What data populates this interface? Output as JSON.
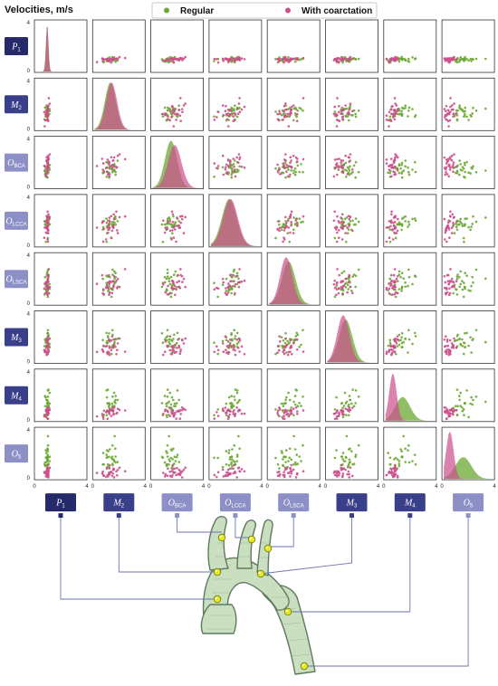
{
  "chart_data": {
    "type": "scatter-matrix",
    "title": "Velocities, m/s",
    "legend": {
      "placement": "top-center",
      "entries": [
        {
          "name": "Regular",
          "color": "#6aa832"
        },
        {
          "name": "With coarctation",
          "color": "#cc4f8c"
        }
      ]
    },
    "axis": {
      "min": 0,
      "max": 4,
      "tick_labels": [
        "0",
        "4"
      ]
    },
    "variables": [
      {
        "base": "P",
        "sub": "1",
        "color": "#252a6b",
        "mean_regular": 0.9,
        "mean_coarct": 0.9,
        "sd_regular": 0.1,
        "sd_coarct": 0.1
      },
      {
        "base": "M",
        "sub": "2",
        "color": "#3a3f8a",
        "mean_regular": 1.3,
        "mean_coarct": 1.4,
        "sd_regular": 0.45,
        "sd_coarct": 0.45
      },
      {
        "base": "O",
        "sub": "BCA",
        "color": "#8d90c6",
        "mean_regular": 1.5,
        "mean_coarct": 1.8,
        "sd_regular": 0.5,
        "sd_coarct": 0.55
      },
      {
        "base": "O",
        "sub": "LCCA",
        "color": "#8d90c6",
        "mean_regular": 1.5,
        "mean_coarct": 1.6,
        "sd_regular": 0.6,
        "sd_coarct": 0.6
      },
      {
        "base": "O",
        "sub": "LSCA",
        "color": "#8d90c6",
        "mean_regular": 1.6,
        "mean_coarct": 1.4,
        "sd_regular": 0.55,
        "sd_coarct": 0.5
      },
      {
        "base": "M",
        "sub": "3",
        "color": "#3a3f8a",
        "mean_regular": 1.5,
        "mean_coarct": 1.3,
        "sd_regular": 0.55,
        "sd_coarct": 0.5
      },
      {
        "base": "M",
        "sub": "4",
        "color": "#3a3f8a",
        "mean_regular": 1.4,
        "mean_coarct": 0.6,
        "sd_regular": 0.6,
        "sd_coarct": 0.3
      },
      {
        "base": "O",
        "sub": "5",
        "color": "#8d90c6",
        "mean_regular": 1.6,
        "mean_coarct": 0.5,
        "sd_regular": 0.65,
        "sd_coarct": 0.3
      }
    ],
    "points_per_group": 28,
    "grid": false
  },
  "icons": {
    "anatomy": "aorta-vessel-diagram",
    "probe": "measurement-point-marker"
  }
}
